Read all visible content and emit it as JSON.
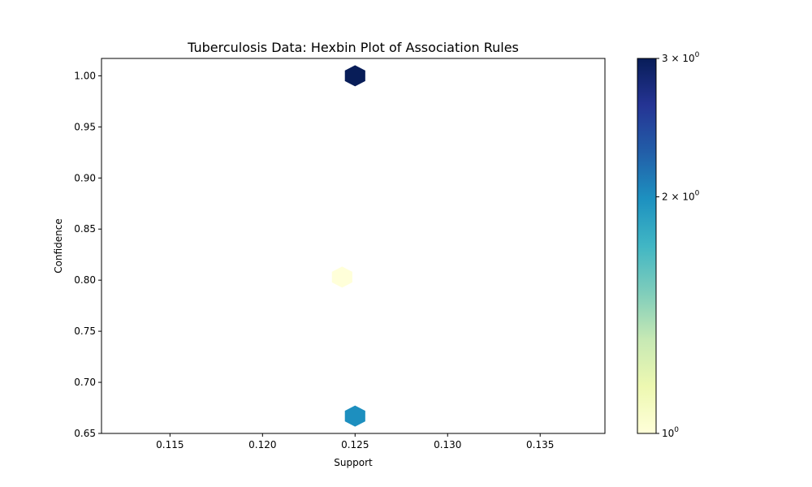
{
  "chart_data": {
    "type": "hexbin",
    "title": "Tuberculosis Data: Hexbin Plot of Association Rules",
    "xlabel": "Support",
    "ylabel": "Confidence",
    "xlim": [
      0.1113,
      0.1385
    ],
    "ylim": [
      0.65,
      1.017
    ],
    "xticks": [
      0.115,
      0.12,
      0.125,
      0.13,
      0.135
    ],
    "xtick_labels": [
      "0.115",
      "0.120",
      "0.125",
      "0.130",
      "0.135"
    ],
    "yticks": [
      0.65,
      0.7,
      0.75,
      0.8,
      0.85,
      0.9,
      0.95,
      1.0
    ],
    "ytick_labels": [
      "0.65",
      "0.70",
      "0.75",
      "0.80",
      "0.85",
      "0.90",
      "0.95",
      "1.00"
    ],
    "bins": [
      {
        "x": 0.125,
        "y": 1.0,
        "count": 3
      },
      {
        "x": 0.1243,
        "y": 0.803,
        "count": 1
      },
      {
        "x": 0.125,
        "y": 0.667,
        "count": 2
      }
    ],
    "colorbar": {
      "scale": "log",
      "colormap": "YlGnBu",
      "range": [
        1,
        3
      ],
      "ticks": [
        {
          "value": 1,
          "base": "10",
          "exp": "0"
        },
        {
          "value": 2,
          "base": "2 × 10",
          "exp": "0"
        },
        {
          "value": 3,
          "base": "3 × 10",
          "exp": "0"
        }
      ]
    },
    "grid": false
  }
}
